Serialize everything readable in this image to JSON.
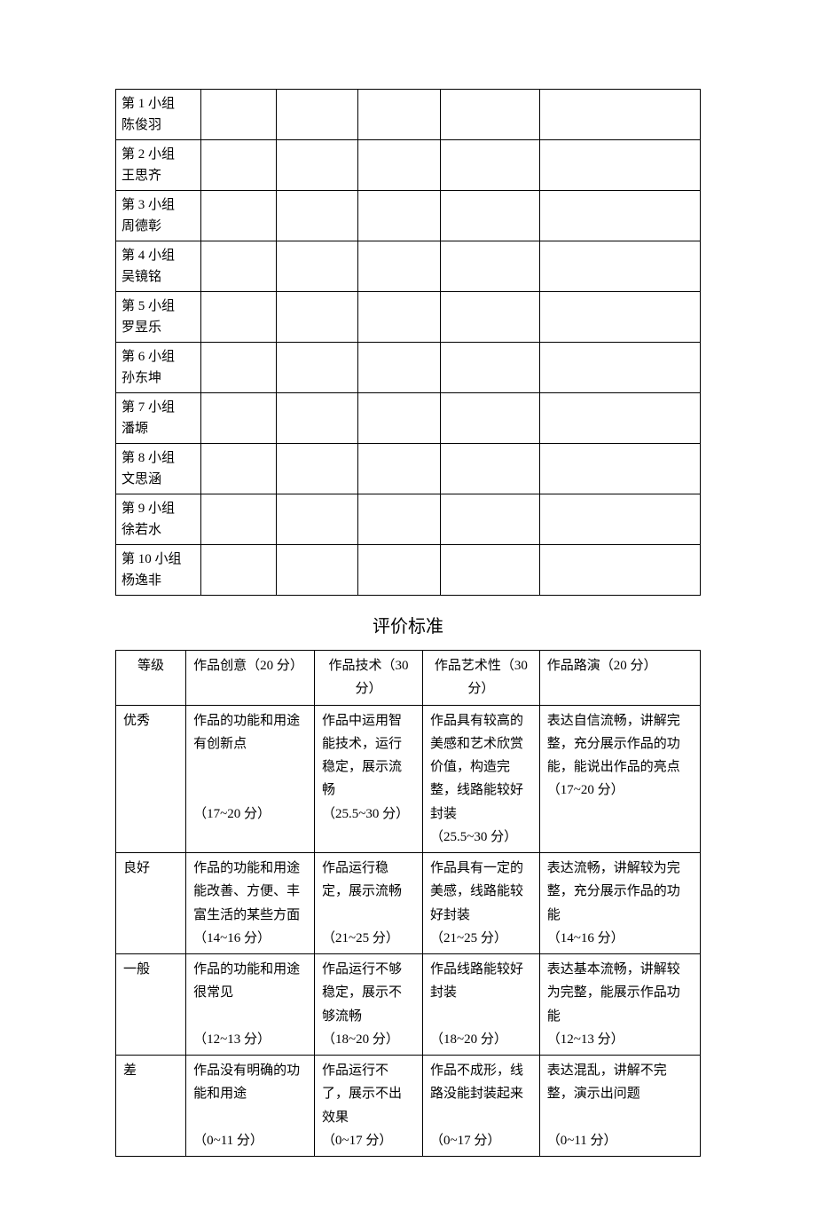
{
  "groups_table": {
    "rows": [
      {
        "line1": "第 1 小组",
        "line2": "陈俊羽"
      },
      {
        "line1": "第 2 小组",
        "line2": "王思齐"
      },
      {
        "line1": "第 3 小组",
        "line2": "周德彰"
      },
      {
        "line1": "第 4 小组",
        "line2": "吴镜铭"
      },
      {
        "line1": "第 5 小组",
        "line2": "罗昱乐"
      },
      {
        "line1": "第 6 小组",
        "line2": "孙东坤"
      },
      {
        "line1": "第 7 小组",
        "line2": "潘塬"
      },
      {
        "line1": "第 8 小组",
        "line2": "文思涵"
      },
      {
        "line1": "第 9 小组",
        "line2": "徐若水"
      },
      {
        "line1": "第 10 小组",
        "line2": "杨逸非"
      }
    ]
  },
  "section_title": "评价标准",
  "criteria_table": {
    "header": {
      "c1": "等级",
      "c2": "作品创意（20 分）",
      "c3": "作品技术（30分）",
      "c4": "作品艺术性（30分）",
      "c5": "作品路演（20 分）"
    },
    "rows": [
      {
        "level": "优秀",
        "c2_desc": "作品的功能和用途有创新点",
        "c2_score": "（17~20 分）",
        "c3_desc": "作品中运用智能技术，运行稳定，展示流畅",
        "c3_score": "（25.5~30 分）",
        "c4_desc": "作品具有较高的美感和艺术欣赏价值，构造完整，线路能较好封装",
        "c4_score": "（25.5~30 分）",
        "c5_desc": "表达自信流畅，讲解完整，充分展示作品的功能，能说出作品的亮点",
        "c5_score": "（17~20 分）"
      },
      {
        "level": "良好",
        "c2_desc": "作品的功能和用途能改善、方便、丰富生活的某些方面",
        "c2_score": "（14~16 分）",
        "c3_desc": "作品运行稳定，展示流畅",
        "c3_score": "（21~25 分）",
        "c4_desc": "作品具有一定的美感，线路能较好封装",
        "c4_score": "（21~25 分）",
        "c5_desc": "表达流畅，讲解较为完整，充分展示作品的功能",
        "c5_score": "（14~16 分）"
      },
      {
        "level": "一般",
        "c2_desc": "作品的功能和用途很常见",
        "c2_score": "（12~13 分）",
        "c3_desc": "作品运行不够稳定，展示不够流畅",
        "c3_score": "（18~20 分）",
        "c4_desc": "作品线路能较好封装",
        "c4_score": "（18~20 分）",
        "c5_desc": "表达基本流畅，讲解较为完整，能展示作品功能",
        "c5_score": "（12~13 分）"
      },
      {
        "level": "差",
        "c2_desc": "作品没有明确的功能和用途",
        "c2_score": "（0~11 分）",
        "c3_desc": "作品运行不了，展示不出效果",
        "c3_score": "（0~17 分）",
        "c4_desc": "作品不成形，线路没能封装起来",
        "c4_score": "（0~17 分）",
        "c5_desc": "表达混乱，讲解不完整，演示出问题",
        "c5_score": "（0~11 分）"
      }
    ]
  },
  "style": {
    "border_color": "#000000",
    "background_color": "#ffffff",
    "text_color": "#000000",
    "body_font_size": 15,
    "title_font_size": 20
  }
}
